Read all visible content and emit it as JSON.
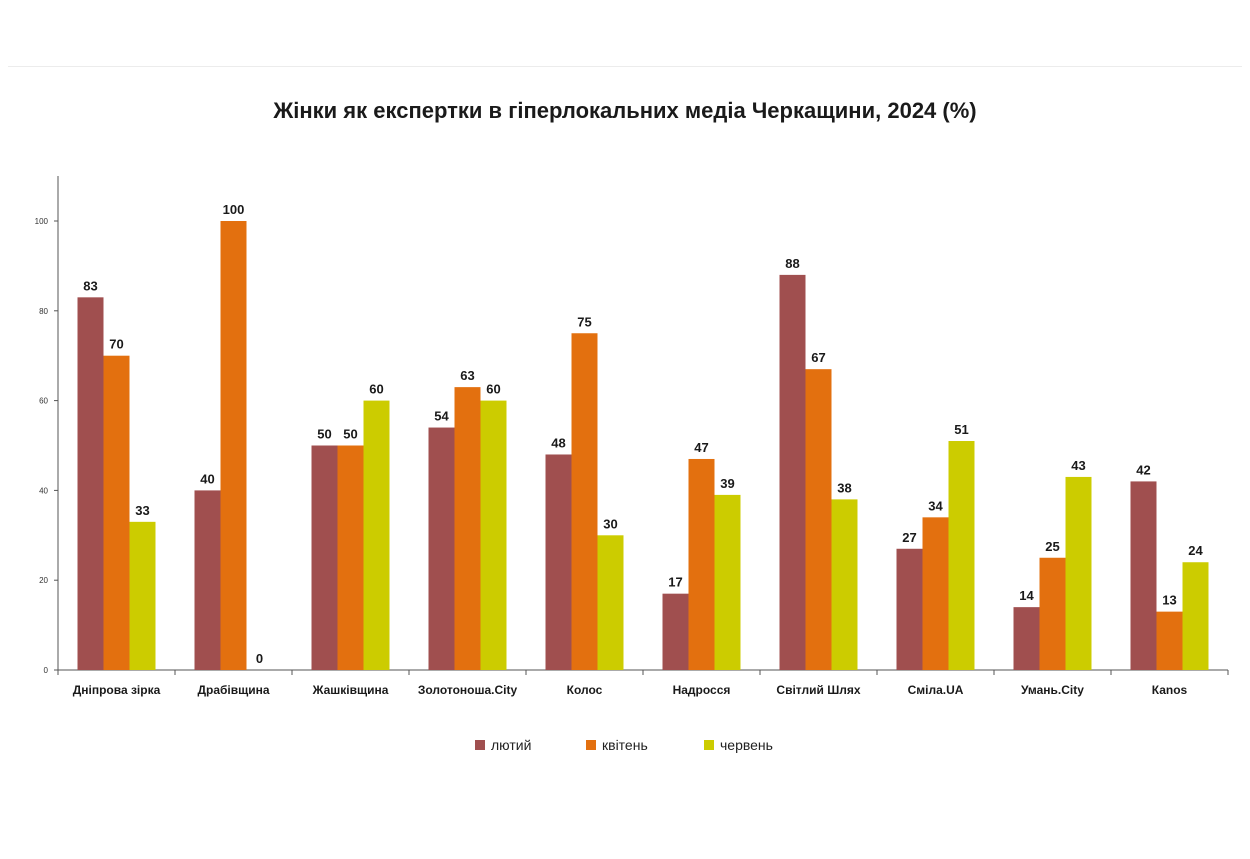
{
  "chart_data": {
    "type": "bar",
    "title": "Жінки як експертки в гіперлокальних медіа Черкащини, 2024 (%)",
    "xlabel": "",
    "ylabel": "",
    "ylim": [
      0,
      110
    ],
    "yticks": [
      "0",
      "20",
      "40",
      "60",
      "80",
      "100"
    ],
    "grid": false,
    "legend_position": "bottom",
    "categories": [
      "Дніпрова зірка",
      "Драбівщина",
      "Жашківщина",
      "Золотоноша.City",
      "Колос",
      "Надросся",
      "Світлий Шлях",
      "Сміла.UA",
      "Умань.City",
      "Каnos"
    ],
    "series": [
      {
        "name": "лютий",
        "color": "#a04f4f",
        "values": [
          83,
          40,
          50,
          54,
          48,
          17,
          88,
          27,
          14,
          42
        ],
        "labels": [
          "83",
          "40",
          "50",
          "54",
          "48",
          "17",
          "88",
          "27",
          "14",
          "42"
        ]
      },
      {
        "name": "квітень",
        "color": "#e3700f",
        "values": [
          70,
          100,
          50,
          63,
          75,
          47,
          67,
          34,
          25,
          13
        ],
        "labels": [
          "70",
          "100",
          "50",
          "63",
          "75",
          "47",
          "67",
          "34",
          "25",
          "13"
        ]
      },
      {
        "name": "червень",
        "color": "#cccc00",
        "values": [
          33,
          0,
          60,
          60,
          30,
          39,
          38,
          51,
          43,
          24
        ],
        "labels": [
          "33",
          "0",
          "60",
          "60",
          "30",
          "39",
          "38",
          "51",
          "43",
          "24"
        ]
      }
    ]
  }
}
